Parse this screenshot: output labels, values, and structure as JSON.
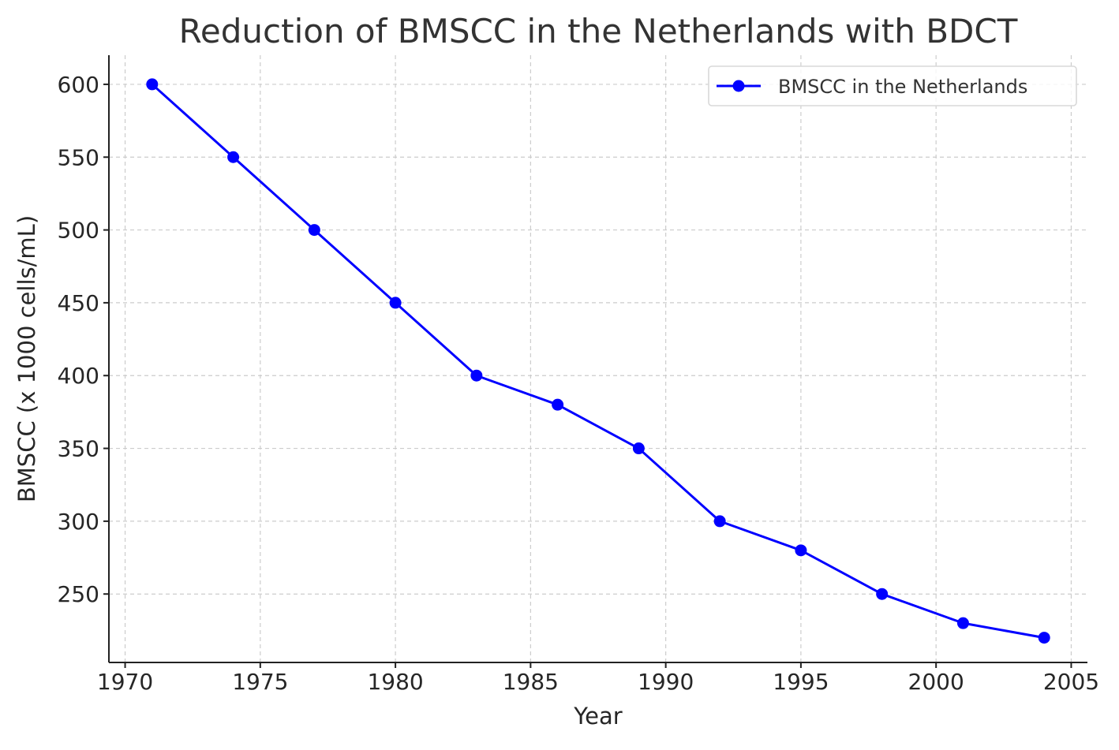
{
  "chart_data": {
    "type": "line",
    "title": "Reduction of BMSCC in the Netherlands with BDCT",
    "xlabel": "Year",
    "ylabel": "BMSCC (x 1000 cells/mL)",
    "xlim": [
      1969.4,
      2005.6
    ],
    "ylim": [
      203,
      620
    ],
    "xticks": [
      1970,
      1975,
      1980,
      1985,
      1990,
      1995,
      2000,
      2005
    ],
    "yticks": [
      250,
      300,
      350,
      400,
      450,
      500,
      550,
      600
    ],
    "grid": true,
    "legend_position": "top-right",
    "series": [
      {
        "name": "BMSCC in the Netherlands",
        "color": "#0000ff",
        "x": [
          1971,
          1974,
          1977,
          1980,
          1983,
          1986,
          1989,
          1992,
          1995,
          1998,
          2001,
          2004
        ],
        "y": [
          600,
          550,
          500,
          450,
          400,
          380,
          350,
          300,
          280,
          250,
          230,
          220
        ]
      }
    ]
  }
}
